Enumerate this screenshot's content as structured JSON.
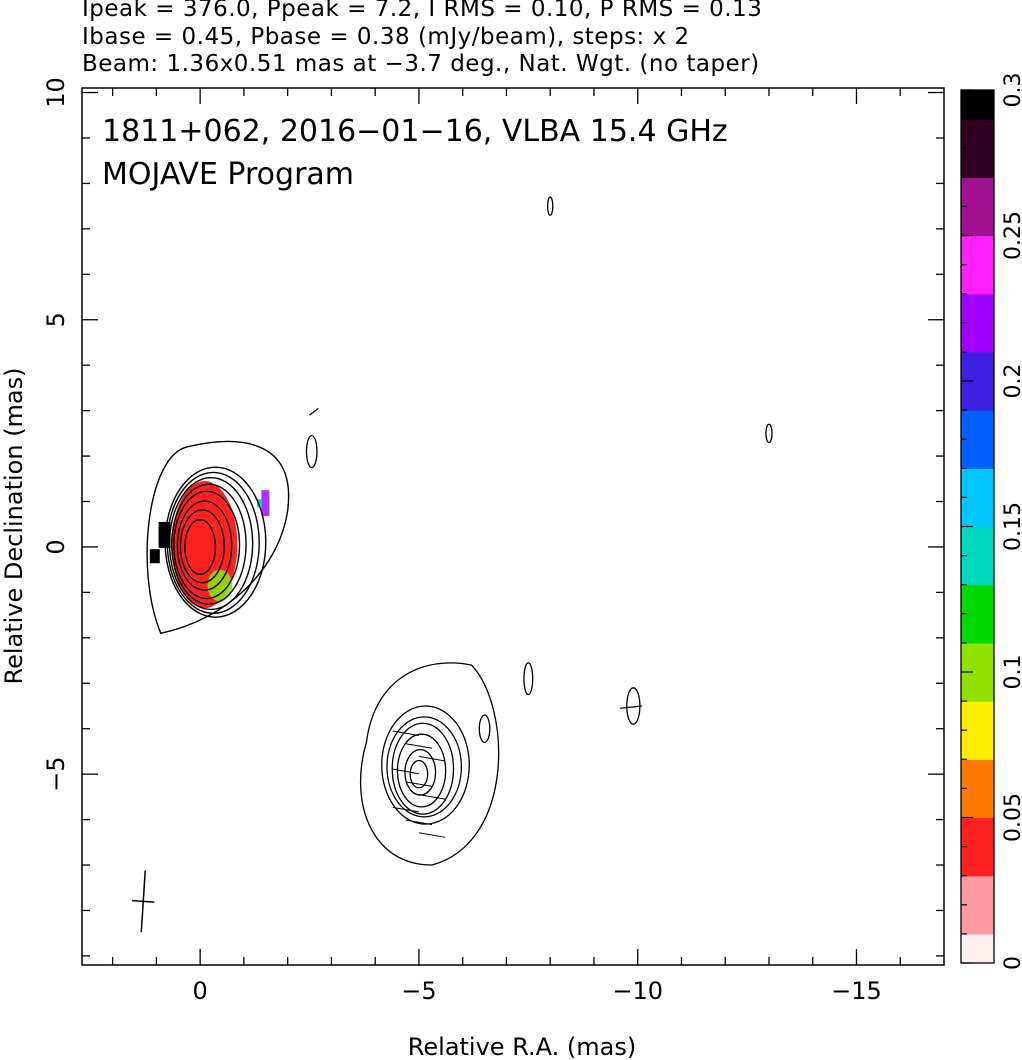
{
  "header": {
    "line1": "Ipeak = 376.0, Ppeak = 7.2, I RMS = 0.10, P RMS = 0.13",
    "line2": "Ibase = 0.45, Pbase = 0.38 (mJy/beam), steps: x 2",
    "line3": "Beam: 1.36x0.51 mas at −3.7 deg., Nat. Wgt. (no taper)"
  },
  "chart_data": {
    "type": "heatmap",
    "title": "1811+062, 2016−01−16, VLBA 15.4 GHz",
    "subtitle": "MOJAVE Program",
    "xlabel": "Relative R.A. (mas)",
    "ylabel": "Relative Declination (mas)",
    "xlim": [
      2.7,
      -17
    ],
    "ylim": [
      -9.2,
      10.1
    ],
    "x_ticks": [
      0,
      -5,
      -10,
      -15
    ],
    "x_tick_labels": [
      "0",
      "−5",
      "−10",
      "−15"
    ],
    "y_ticks": [
      -5,
      0,
      5,
      10
    ],
    "y_tick_labels": [
      "−5",
      "0",
      "5",
      "10"
    ],
    "colorbar": {
      "min": 0,
      "max": 0.3,
      "ticks": [
        0,
        0.05,
        0.1,
        0.15,
        0.2,
        0.25,
        0.3
      ],
      "tick_labels": [
        "0",
        "0.05",
        "0.1",
        "0.15",
        "0.2",
        "0.25",
        "0.3"
      ],
      "colors": [
        "#ffeeee",
        "#ff9aa0",
        "#ff2020",
        "#ff7a00",
        "#ffee00",
        "#90e000",
        "#00d800",
        "#00d8c0",
        "#00c8ff",
        "#0060ff",
        "#4020e0",
        "#a000ff",
        "#ff20ff",
        "#a01090",
        "#300020",
        "#000000"
      ]
    },
    "core": {
      "x": 0,
      "y": 0,
      "contour_semi_axes_mas": [
        [
          0.35,
          0.6
        ],
        [
          0.5,
          0.8
        ],
        [
          0.62,
          0.98
        ],
        [
          0.75,
          1.18
        ],
        [
          0.85,
          1.32
        ],
        [
          0.95,
          1.45
        ],
        [
          1.05,
          1.55
        ],
        [
          1.15,
          1.65
        ]
      ]
    },
    "component": {
      "x": -5,
      "y": -5,
      "contour_semi_axes_mas": [
        [
          0.2,
          0.3
        ],
        [
          0.35,
          0.5
        ],
        [
          0.55,
          0.8
        ],
        [
          0.7,
          1.0
        ],
        [
          0.85,
          1.1
        ],
        [
          1.0,
          1.3
        ]
      ]
    },
    "polarization": {
      "core_patch_center": [
        -0.1,
        0.05
      ],
      "colorbar_value_core": 0.04,
      "colorbar_value_edge": 0.1
    },
    "beam": {
      "major_mas": 1.36,
      "minor_mas": 0.51,
      "pa_deg": -3.7,
      "position": [
        1.3,
        -7.8
      ]
    }
  }
}
